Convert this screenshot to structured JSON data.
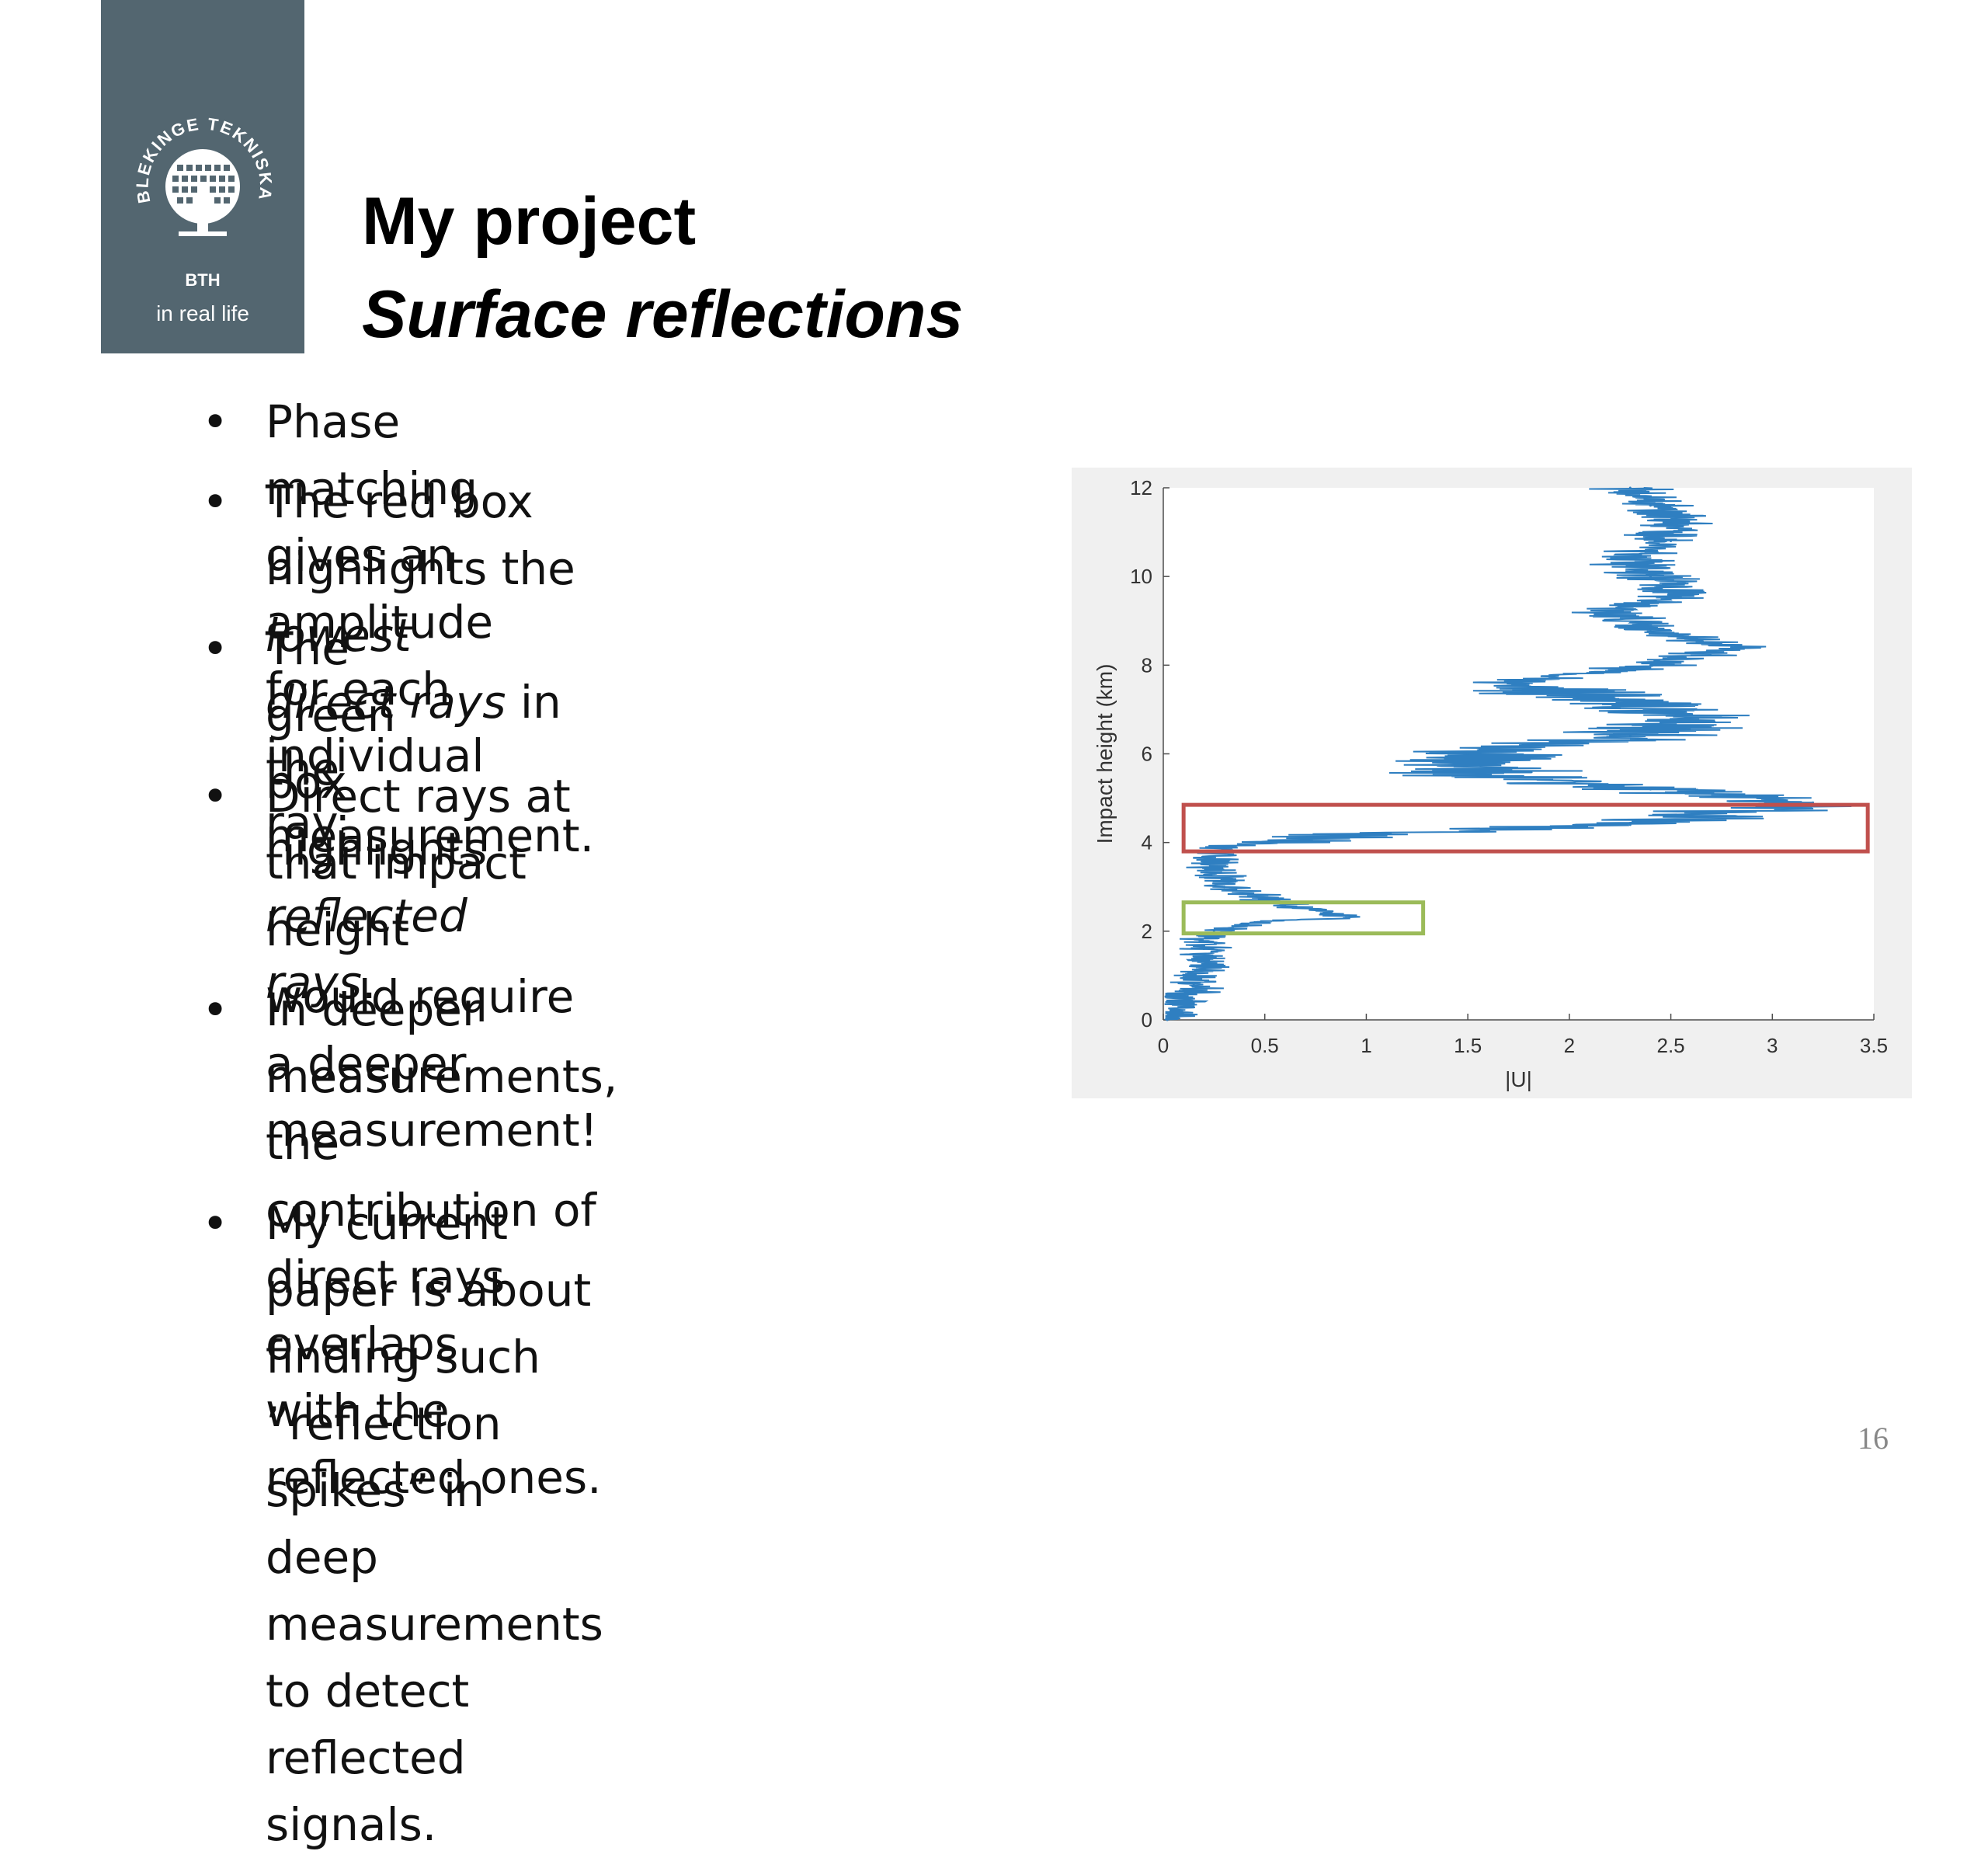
{
  "logo": {
    "name": "BLEKINGE TEKNISKA HÖGSKOLA",
    "abbr": "BTH",
    "tagline": "in real life"
  },
  "title": {
    "line1": "My project",
    "line2": "Surface reflections"
  },
  "bullets": [
    {
      "lines": [
        [
          {
            "t": "Phase matching gives an amplitude for each individual ray:"
          }
        ]
      ]
    },
    {
      "lines": [
        [
          {
            "t": "The red box highlights the "
          },
          {
            "t": "lowest",
            "i": true
          }
        ],
        [
          {
            "t": "direct rays",
            "i": true
          },
          {
            "t": " in the measurement."
          }
        ]
      ]
    },
    {
      "lines": [
        [
          {
            "t": "The green box highlights "
          },
          {
            "t": "reflected",
            "i": true
          }
        ],
        [
          {
            "t": "rays",
            "i": true
          },
          {
            "t": "."
          }
        ]
      ]
    },
    {
      "lines": [
        [
          {
            "t": "Direct rays at that impact height"
          }
        ],
        [
          {
            "t": "would require a deeper"
          }
        ],
        [
          {
            "t": "measurement!"
          }
        ]
      ]
    },
    {
      "lines": [
        [
          {
            "t": "In deeper measurements, the"
          }
        ],
        [
          {
            "t": "contribution of direct rays overlaps"
          }
        ],
        [
          {
            "t": "with the reflected ones."
          }
        ]
      ]
    },
    {
      "lines": [
        [
          {
            "t": "My current paper is about finding such ”reflection spikes” in deep"
          }
        ],
        [
          {
            "t": "measurements to detect reflected signals."
          }
        ]
      ]
    }
  ],
  "chart_data": {
    "type": "line",
    "xlabel": "|U|",
    "ylabel": "Impact height (km)",
    "xlim": [
      0,
      3.5
    ],
    "ylim": [
      0,
      12
    ],
    "xticks": [
      "0",
      "0.5",
      "1",
      "1.5",
      "2",
      "2.5",
      "3",
      "3.5"
    ],
    "yticks": [
      "0",
      "2",
      "4",
      "6",
      "8",
      "10",
      "12"
    ],
    "grid": false,
    "series": [
      {
        "color": "#2f7fc1",
        "x": [
          0.02,
          0.15,
          0.2,
          0.25,
          0.45,
          0.9,
          0.6,
          0.3,
          0.25,
          0.3,
          1.0,
          2.3,
          2.8,
          3.2,
          2.4,
          1.6,
          1.5,
          2.3,
          2.6,
          2.2,
          1.7,
          2.4,
          2.8,
          2.4,
          2.2,
          2.6,
          2.4,
          2.3,
          2.5,
          2.5,
          2.4,
          2.3
        ],
        "y": [
          0.0,
          0.8,
          1.6,
          2.0,
          2.2,
          2.3,
          2.6,
          3.0,
          3.6,
          3.9,
          4.2,
          4.4,
          4.7,
          4.9,
          5.2,
          5.5,
          6.0,
          6.4,
          6.8,
          7.2,
          7.6,
          8.0,
          8.4,
          8.8,
          9.2,
          9.6,
          10.0,
          10.4,
          10.8,
          11.2,
          11.6,
          12.0
        ]
      }
    ],
    "highlight_boxes": [
      {
        "label": "red box",
        "color": "#c0504d",
        "x": [
          0.1,
          3.47
        ],
        "y": [
          3.8,
          4.85
        ]
      },
      {
        "label": "green box",
        "color": "#9bbb59",
        "x": [
          0.1,
          1.28
        ],
        "y": [
          1.95,
          2.65
        ]
      }
    ]
  },
  "page_number": "16"
}
